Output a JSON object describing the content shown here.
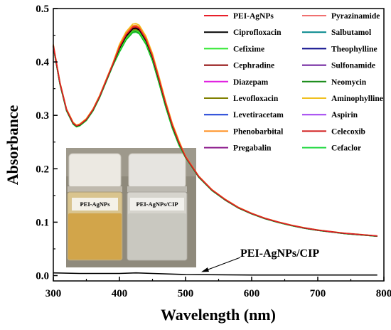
{
  "chart_data": {
    "type": "line",
    "title": "",
    "xlabel": "Wavelength (nm)",
    "ylabel": "Absorbance",
    "xlim": [
      300,
      800
    ],
    "ylim": [
      -0.01,
      0.5
    ],
    "x_ticks": [
      "300",
      "400",
      "500",
      "600",
      "700",
      "800"
    ],
    "y_ticks": [
      "0.0",
      "0.1",
      "0.2",
      "0.3",
      "0.4",
      "0.5"
    ],
    "x_tick_values": [
      300,
      400,
      500,
      600,
      700,
      800
    ],
    "y_tick_values": [
      0.0,
      0.1,
      0.2,
      0.3,
      0.4,
      0.5
    ],
    "grid": false,
    "legend_position": "top-right",
    "x": [
      300,
      310,
      320,
      330,
      335,
      340,
      350,
      360,
      370,
      380,
      390,
      400,
      410,
      420,
      425,
      430,
      440,
      450,
      460,
      470,
      480,
      490,
      500,
      520,
      540,
      560,
      580,
      600,
      620,
      640,
      660,
      680,
      700,
      720,
      740,
      760,
      780,
      790
    ],
    "base_values": [
      0.43,
      0.36,
      0.31,
      0.285,
      0.28,
      0.282,
      0.292,
      0.31,
      0.335,
      0.365,
      0.395,
      0.425,
      0.448,
      0.462,
      0.463,
      0.46,
      0.44,
      0.408,
      0.365,
      0.32,
      0.28,
      0.248,
      0.222,
      0.185,
      0.16,
      0.142,
      0.127,
      0.116,
      0.107,
      0.1,
      0.094,
      0.089,
      0.085,
      0.082,
      0.079,
      0.077,
      0.075,
      0.074
    ],
    "series": [
      {
        "name": "PEI-AgNPs",
        "color": "#e8202a",
        "offset": 0.004
      },
      {
        "name": "Ciprofloxacin",
        "color": "#000000",
        "offset": 0.0
      },
      {
        "name": "Cefixime",
        "color": "#2ee82e",
        "offset": -0.006
      },
      {
        "name": "Cephradine",
        "color": "#8b0000",
        "offset": 0.002
      },
      {
        "name": "Diazepam",
        "color": "#e020e0",
        "offset": 0.0
      },
      {
        "name": "Levofloxacin",
        "color": "#808000",
        "offset": -0.003
      },
      {
        "name": "Levetiracetam",
        "color": "#1a3fd6",
        "offset": 0.001
      },
      {
        "name": "Phenobarbital",
        "color": "#ff8c1a",
        "offset": 0.008
      },
      {
        "name": "Pregabalin",
        "color": "#8b1a8b",
        "offset": -0.005
      },
      {
        "name": "Pyrazinamide",
        "color": "#f07070",
        "offset": 0.003
      },
      {
        "name": "Salbutamol",
        "color": "#00868b",
        "offset": -0.002
      },
      {
        "name": "Theophylline",
        "color": "#0a0a8b",
        "offset": 0.001
      },
      {
        "name": "Sulfonamide",
        "color": "#6a1a9a",
        "offset": -0.004
      },
      {
        "name": "Neomycin",
        "color": "#1a8b1a",
        "offset": -0.008
      },
      {
        "name": "Aminophylline",
        "color": "#f0c020",
        "offset": 0.012
      },
      {
        "name": "Aspirin",
        "color": "#a040f0",
        "offset": 0.0
      },
      {
        "name": "Celecoxib",
        "color": "#d01a1a",
        "offset": 0.005
      },
      {
        "name": "Cefaclor",
        "color": "#20d840",
        "offset": -0.01
      }
    ],
    "cip_series": {
      "name": "PEI-AgNPs/CIP",
      "color": "#000000",
      "x": [
        300,
        340,
        400,
        425,
        450,
        500,
        600,
        700,
        790
      ],
      "values": [
        0.005,
        0.004,
        0.004,
        0.005,
        0.004,
        0.002,
        0.001,
        0.001,
        0.001
      ]
    },
    "annotations": [
      {
        "text": "PEI-AgNPs/CIP",
        "points_to": "PEI-AgNPs/CIP"
      }
    ],
    "inset": {
      "vials": [
        {
          "label": "PEI-AgNPs",
          "liquid_color": "#d2a54a",
          "cap_color": "#ece9e2"
        },
        {
          "label": "PEI-AgNPs/CIP",
          "liquid_color": "#c9c8c0",
          "cap_color": "#e6e4e0"
        }
      ],
      "background": "#8f8a7c"
    }
  }
}
